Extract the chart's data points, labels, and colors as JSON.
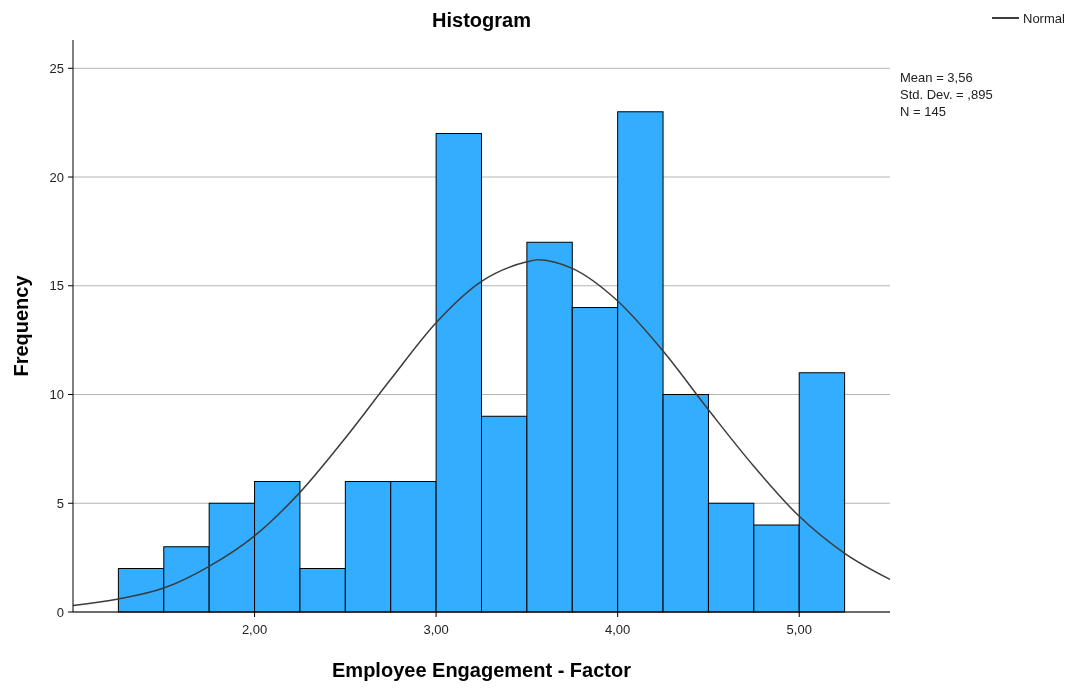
{
  "chart_data": {
    "type": "histogram",
    "title": "Histogram",
    "xlabel": "Employee Engagement - Factor",
    "ylabel": "Frequency",
    "bins": [
      1.25,
      1.5,
      1.75,
      2,
      2.25,
      2.5,
      2.75,
      3,
      3.25,
      3.5,
      3.75,
      4,
      4.25,
      4.5,
      4.75,
      5,
      5.25
    ],
    "values": [
      2,
      3,
      5,
      6,
      2,
      6,
      6,
      22,
      9,
      17,
      14,
      23,
      10,
      5,
      4,
      11
    ],
    "color": "#33adff",
    "series": [
      {
        "type": "line",
        "name": "Normal",
        "color": "#3c3c3c",
        "x": [
          1,
          1.25,
          1.5,
          1.75,
          2,
          2.25,
          2.5,
          2.75,
          3,
          3.25,
          3.5,
          3.56,
          3.75,
          4,
          4.25,
          4.5,
          4.75,
          5,
          5.25,
          5.5
        ],
        "values": [
          0.3,
          0.6,
          1.1,
          2.1,
          3.5,
          5.5,
          8,
          10.7,
          13.3,
          15.2,
          16.1,
          16.2,
          15.8,
          14.3,
          12,
          9.3,
          6.7,
          4.4,
          2.7,
          1.5
        ]
      }
    ],
    "xlim": [
      1,
      5.5
    ],
    "ylim": [
      0,
      26.3
    ],
    "xticks": [
      {
        "value": 2,
        "label": "2,00"
      },
      {
        "value": 3,
        "label": "3,00"
      },
      {
        "value": 4,
        "label": "4,00"
      },
      {
        "value": 5,
        "label": "5,00"
      }
    ],
    "yticks": [
      0,
      5,
      10,
      15,
      20,
      25
    ],
    "grid": "y",
    "legend": "top right",
    "annotations": [
      "Mean = 3,56",
      "Std. Dev. = ,895",
      "N = 145"
    ]
  }
}
